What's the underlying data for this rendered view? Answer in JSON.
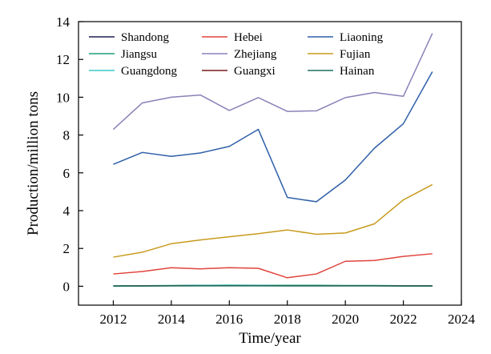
{
  "chart_data": {
    "type": "line",
    "title": "",
    "xlabel": "Time/year",
    "ylabel": "Production/million tons",
    "xlim": [
      2010.8,
      2024
    ],
    "ylim": [
      -1,
      14
    ],
    "xticks": [
      2012,
      2014,
      2016,
      2018,
      2020,
      2022,
      2024
    ],
    "yticks": [
      0,
      2,
      4,
      6,
      8,
      10,
      12,
      14
    ],
    "x": [
      2012,
      2013,
      2014,
      2015,
      2016,
      2017,
      2018,
      2019,
      2020,
      2021,
      2022,
      2023
    ],
    "grid": false,
    "legend_position": "top, inside plot, 3 columns",
    "series": [
      {
        "name": "Shandong",
        "color": "#1f1f4f",
        "values": [
          0.02,
          0.02,
          0.03,
          0.04,
          0.05,
          0.04,
          0.04,
          0.03,
          0.03,
          0.03,
          0.02,
          0.02
        ]
      },
      {
        "name": "Hebei",
        "color": "#e0443c",
        "values": [
          0.65,
          0.78,
          0.98,
          0.92,
          0.98,
          0.95,
          0.45,
          0.65,
          1.32,
          1.36,
          1.58,
          1.72
        ]
      },
      {
        "name": "Liaoning",
        "color": "#2e5fa8",
        "values": [
          6.45,
          7.08,
          6.87,
          7.05,
          7.4,
          8.3,
          4.7,
          4.47,
          5.62,
          7.3,
          8.6,
          11.35
        ]
      },
      {
        "name": "Jiangsu",
        "color": "#1aa07a",
        "values": [
          0.03,
          0.03,
          0.04,
          0.05,
          0.06,
          0.05,
          0.05,
          0.05,
          0.04,
          0.04,
          0.03,
          0.03
        ]
      },
      {
        "name": "Zhejiang",
        "color": "#8a80b8",
        "values": [
          8.3,
          9.7,
          10.0,
          10.12,
          9.3,
          9.98,
          9.25,
          9.28,
          9.98,
          10.25,
          10.05,
          13.38
        ]
      },
      {
        "name": "Fujian",
        "color": "#c89b1e",
        "values": [
          1.54,
          1.8,
          2.25,
          2.45,
          2.62,
          2.78,
          2.98,
          2.75,
          2.82,
          3.3,
          4.57,
          5.38
        ]
      },
      {
        "name": "Guangdong",
        "color": "#3cc8c8",
        "values": [
          0.02,
          0.03,
          0.03,
          0.04,
          0.05,
          0.04,
          0.03,
          0.03,
          0.03,
          0.03,
          0.02,
          0.02
        ]
      },
      {
        "name": "Guangxi",
        "color": "#7a1a1a",
        "values": [
          0.01,
          0.02,
          0.02,
          0.03,
          0.03,
          0.03,
          0.02,
          0.02,
          0.02,
          0.02,
          0.02,
          0.02
        ]
      },
      {
        "name": "Hainan",
        "color": "#1a7060",
        "values": [
          0.01,
          0.01,
          0.02,
          0.02,
          0.02,
          0.02,
          0.02,
          0.02,
          0.02,
          0.02,
          0.01,
          0.01
        ]
      }
    ]
  }
}
